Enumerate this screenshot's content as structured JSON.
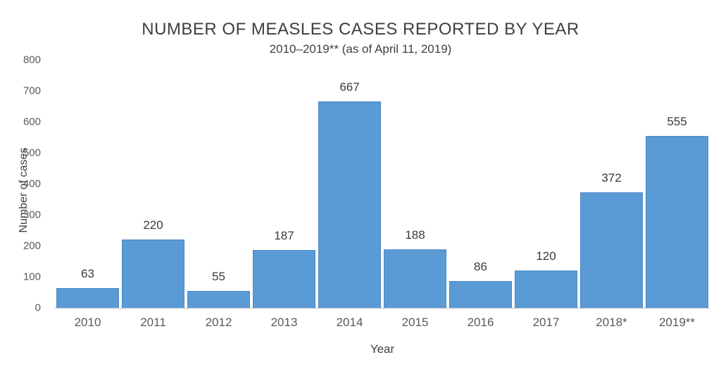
{
  "chart_data": {
    "type": "bar",
    "title": "NUMBER OF MEASLES CASES REPORTED BY YEAR",
    "subtitle": "2010–2019** (as of April 11, 2019)",
    "categories": [
      "2010",
      "2011",
      "2012",
      "2013",
      "2014",
      "2015",
      "2016",
      "2017",
      "2018*",
      "2019**"
    ],
    "values": [
      63,
      220,
      55,
      187,
      667,
      188,
      86,
      120,
      372,
      555
    ],
    "xlabel": "Year",
    "ylabel": "Number of cases",
    "ylim": [
      0,
      800
    ],
    "yticks": [
      0,
      100,
      200,
      300,
      400,
      500,
      600,
      700,
      800
    ],
    "grid": false,
    "legend": false,
    "bar_color": "#5B9BD5",
    "bar_border_color": "#4A89C7",
    "axis_line_color": "#BFBFBF",
    "title_color": "#3F3F3F",
    "tick_color": "#595959"
  }
}
